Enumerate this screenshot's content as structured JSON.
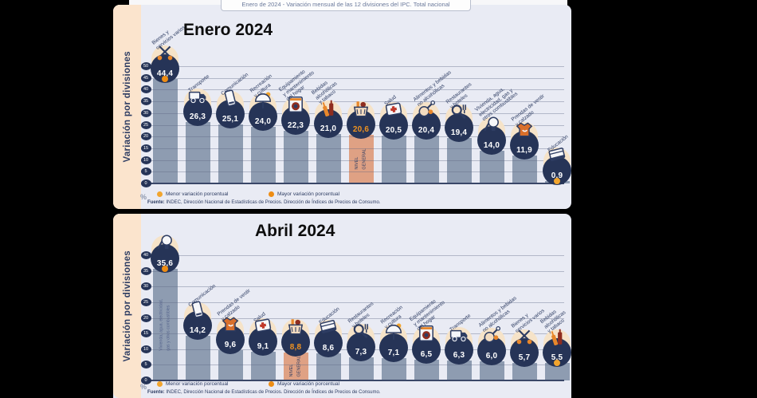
{
  "window_header": "Enero de 2024 - Variación mensual de las 12 divisiones del IPC. Total nacional",
  "side_label": "Variación por divisiones",
  "unit": "%",
  "legend": {
    "menor": "Menor variación porcentual",
    "mayor": "Mayor variación porcentual"
  },
  "source": {
    "prefix": "Fuente:",
    "text": " INDEC, Dirección Nacional de Estadísticas de Precios. Dirección de Índices de Precios de Consumo."
  },
  "colors": {
    "panel_bg": "#e9ebf4",
    "strip_bg": "#fbe4cd",
    "bar": "#8e9cb1",
    "nivel_general_bar": "#dfa184",
    "badge_navy": "#263457",
    "value_orange": "#ef9220",
    "menor_dot": "#f2a52e",
    "mayor_dot": "#ee8d14"
  },
  "chart_data": [
    {
      "type": "bar",
      "title": "Enero 2024",
      "ylabel": "Variación por divisiones",
      "unit": "%",
      "ylim": [
        0,
        50
      ],
      "yticks": [
        0,
        5,
        10,
        15,
        20,
        25,
        30,
        35,
        40,
        45,
        50
      ],
      "grid": true,
      "nivel_general_label": "NIVEL\nGENERAL",
      "bars": [
        {
          "label": "Bienes y\nservicios varios",
          "value": 44.4,
          "icon": "scissors-icon",
          "marker": "mayor"
        },
        {
          "label": "Transporte",
          "value": 26.3,
          "icon": "truck-icon"
        },
        {
          "label": "Comunicación",
          "value": 25.1,
          "icon": "phone-icon"
        },
        {
          "label": "Recreación\ny cultura",
          "value": 24.0,
          "icon": "umbrella-icon"
        },
        {
          "label": "Equipamiento\ny mantenimiento\ndel hogar",
          "value": 22.3,
          "icon": "washer-icon"
        },
        {
          "label": "Bebidas\nalcohólicas\ny tabaco",
          "value": 21.0,
          "icon": "bottles-icon"
        },
        {
          "label": "",
          "value": 20.6,
          "icon": "basket-icon",
          "nivel_general": true
        },
        {
          "label": "Salud",
          "value": 20.5,
          "icon": "health-cross-icon"
        },
        {
          "label": "Alimentos y bebidas\nno alcohólicas",
          "value": 20.4,
          "icon": "food-icon"
        },
        {
          "label": "Restaurantes\ny hoteles",
          "value": 19.4,
          "icon": "restaurant-icon"
        },
        {
          "label": "Vivienda, agua,\nelectricidad, gas y\notros combustibles",
          "value": 14.0,
          "icon": "housing-icon"
        },
        {
          "label": "Prendas de vestir\ny calzado",
          "value": 11.9,
          "icon": "shirt-icon"
        },
        {
          "label": "Educación",
          "value": 0.9,
          "icon": "books-icon",
          "marker": "menor"
        }
      ]
    },
    {
      "type": "bar",
      "title": "Abril 2024",
      "ylabel": "Variación por divisiones",
      "unit": "%",
      "ylim": [
        0,
        40
      ],
      "yticks": [
        0,
        5,
        10,
        15,
        20,
        25,
        30,
        35,
        40
      ],
      "grid": true,
      "nivel_general_label": "NIVEL\nGENERAL",
      "bars": [
        {
          "label": "",
          "bar_text": "Vivienda, agua, electricidad,\ngas y otros combustibles",
          "value": 35.6,
          "icon": "housing-icon",
          "marker": "mayor"
        },
        {
          "label": "Comunicación",
          "value": 14.2,
          "icon": "phone-icon"
        },
        {
          "label": "Prendas de vestir\ny calzado",
          "value": 9.6,
          "icon": "shirt-icon"
        },
        {
          "label": "Salud",
          "value": 9.1,
          "icon": "health-cross-icon"
        },
        {
          "label": "",
          "value": 8.8,
          "icon": "basket-icon",
          "nivel_general": true
        },
        {
          "label": "Educación",
          "value": 8.6,
          "icon": "books-icon"
        },
        {
          "label": "Restaurantes\ny hoteles",
          "value": 7.3,
          "icon": "restaurant-icon"
        },
        {
          "label": "Recreación\ny cultura",
          "value": 7.1,
          "icon": "umbrella-icon"
        },
        {
          "label": "Equipamiento\ny mantenimiento\ndel hogar",
          "value": 6.5,
          "icon": "washer-icon"
        },
        {
          "label": "Transporte",
          "value": 6.3,
          "icon": "truck-icon"
        },
        {
          "label": "Alimentos y bebidas\nno alcohólicas",
          "value": 6.0,
          "icon": "food-icon"
        },
        {
          "label": "Bienes y\nservicios varios",
          "value": 5.7,
          "icon": "scissors-icon"
        },
        {
          "label": "Bebidas\nalcohólicas\ny tabaco",
          "value": 5.5,
          "icon": "bottles-icon",
          "marker": "menor"
        }
      ]
    }
  ]
}
